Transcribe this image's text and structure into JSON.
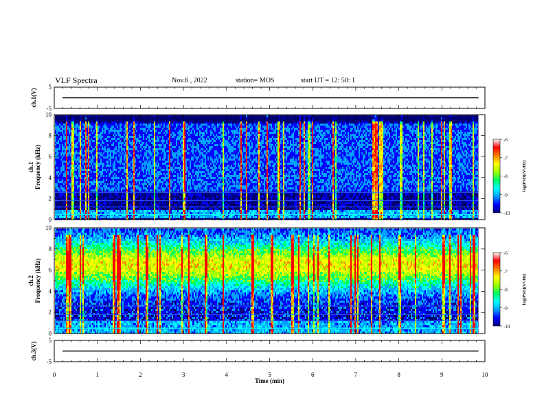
{
  "header": {
    "title": "VLF Spectra",
    "date": "Nov.6  , 2022",
    "station": "station= MOS",
    "start": "start  UT =   12: 50: 1"
  },
  "chart_data": {
    "type": "heatmap",
    "x_axis": {
      "label": "Time  (min)",
      "range": [
        0,
        10
      ],
      "ticks": [
        "0",
        "1",
        "2",
        "3",
        "4",
        "5",
        "6",
        "7",
        "8",
        "9",
        "10"
      ]
    },
    "panels": [
      {
        "id": "ch1-waveform",
        "ylabel": "ch.1(V)",
        "ylim": [
          -5,
          5
        ],
        "ticks": [
          "5",
          "-5"
        ],
        "level": 0
      },
      {
        "id": "ch1-spectrogram",
        "ylabel_line1": "ch.1",
        "ylabel_line2": "Frequency (kHz)",
        "ylim": [
          0,
          10
        ],
        "ticks": [
          "10",
          "8",
          "6",
          "4",
          "2",
          "0"
        ],
        "data_end_min": 9.85
      },
      {
        "id": "ch2-spectrogram",
        "ylabel_line1": "ch.2",
        "ylabel_line2": "Frequency (kHz)",
        "ylim": [
          0,
          10
        ],
        "ticks": [
          "10",
          "8",
          "6",
          "4",
          "2",
          "0"
        ],
        "data_end_min": 9.85
      },
      {
        "id": "ch3-waveform",
        "ylabel": "ch.3(V)",
        "ylim": [
          -5,
          5
        ],
        "ticks": [
          "5",
          "-5"
        ],
        "level": 0
      }
    ],
    "colorbar": {
      "label": "log(PSD)(V²/Hz)",
      "range": [
        -10,
        -6
      ],
      "ticks": [
        "-6",
        "-7",
        "-8",
        "-9",
        "-10"
      ],
      "colors": [
        "#000080",
        "#0000ff",
        "#00a0ff",
        "#00ffff",
        "#00ff60",
        "#a0ff00",
        "#ffff00",
        "#ff8000",
        "#ff0000",
        "#ffffff"
      ]
    }
  }
}
